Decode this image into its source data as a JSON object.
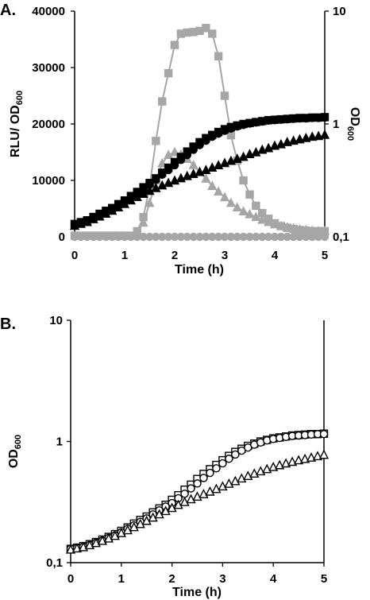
{
  "colors": {
    "black": "#000000",
    "gray": "#a6a6a6",
    "white": "#ffffff"
  },
  "chart_data": [
    {
      "panel_label": "A.",
      "type": "line",
      "xlabel": "Time (h)",
      "ylabel_left": "RLU/ OD",
      "ylabel_left_sub": "600",
      "ylabel_right": "OD",
      "ylabel_right_sub": "600",
      "xlim": [
        0,
        5
      ],
      "ylim_left": [
        0,
        40000
      ],
      "ylim_right": [
        0.1,
        10
      ],
      "y_right_scale": "log",
      "x_ticks": [
        "0",
        "1",
        "2",
        "3",
        "4",
        "5"
      ],
      "y_left_ticks": [
        "0",
        "10000",
        "20000",
        "30000",
        "40000"
      ],
      "y_right_ticks": [
        "0,1",
        "1",
        "10"
      ],
      "series": [
        {
          "axis": "left",
          "marker": "square",
          "color": "gray",
          "line": true,
          "x": [
            0,
            0.125,
            0.25,
            0.375,
            0.5,
            0.625,
            0.75,
            0.875,
            1,
            1.125,
            1.25,
            1.375,
            1.5,
            1.625,
            1.75,
            1.875,
            2,
            2.125,
            2.25,
            2.375,
            2.5,
            2.625,
            2.75,
            2.875,
            3,
            3.125,
            3.25,
            3.375,
            3.5,
            3.625,
            3.75,
            3.875,
            4,
            4.125,
            4.25,
            4.375,
            4.5,
            4.625,
            4.75,
            4.875,
            5
          ],
          "y": [
            200,
            200,
            200,
            200,
            200,
            200,
            200,
            200,
            200,
            200,
            1000,
            3500,
            9000,
            17000,
            24000,
            29000,
            34000,
            36000,
            36200,
            36300,
            36500,
            37000,
            36000,
            32000,
            25000,
            18000,
            13500,
            10000,
            7500,
            5500,
            4200,
            3200,
            2400,
            1900,
            1600,
            1400,
            1200,
            1100,
            1000,
            1000,
            1000
          ]
        },
        {
          "axis": "left",
          "marker": "triangle",
          "color": "gray",
          "line": true,
          "x": [
            1.25,
            1.375,
            1.5,
            1.625,
            1.75,
            1.875,
            2,
            2.125,
            2.25,
            2.375,
            2.5,
            2.625,
            2.75,
            2.875,
            3,
            3.125,
            3.25,
            3.375,
            3.5,
            3.625,
            3.75,
            3.875,
            4,
            4.125,
            4.25,
            4.375,
            4.5,
            4.625,
            4.75,
            4.875,
            5
          ],
          "y": [
            700,
            2500,
            6000,
            10000,
            13000,
            14500,
            15000,
            14600,
            13800,
            12700,
            11500,
            10300,
            9000,
            8000,
            7000,
            6000,
            5200,
            4500,
            4000,
            3500,
            3000,
            2600,
            2200,
            1900,
            1700,
            1500,
            1300,
            1200,
            1100,
            1000,
            1000
          ]
        },
        {
          "axis": "left",
          "marker": "circle",
          "color": "gray",
          "line": true,
          "x": [
            0,
            0.125,
            0.25,
            0.375,
            0.5,
            0.625,
            0.75,
            0.875,
            1,
            1.125,
            1.25,
            1.375,
            1.5,
            1.625,
            1.75,
            1.875,
            2,
            2.125,
            2.25,
            2.375,
            2.5,
            2.625,
            2.75,
            2.875,
            3,
            3.125,
            3.25,
            3.375,
            3.5,
            3.625,
            3.75,
            3.875,
            4,
            4.125,
            4.25,
            4.375,
            4.5,
            4.625,
            4.75,
            4.875,
            5
          ],
          "y": [
            0,
            0,
            0,
            0,
            0,
            0,
            0,
            0,
            0,
            0,
            0,
            0,
            0,
            0,
            0,
            0,
            0,
            0,
            0,
            0,
            0,
            0,
            0,
            0,
            0,
            0,
            0,
            0,
            0,
            0,
            0,
            0,
            0,
            0,
            0,
            0,
            0,
            0,
            0,
            0,
            0
          ]
        },
        {
          "axis": "right",
          "marker": "square",
          "color": "black",
          "line": false,
          "x": [
            0,
            0.125,
            0.25,
            0.375,
            0.5,
            0.625,
            0.75,
            0.875,
            1,
            1.125,
            1.25,
            1.375,
            1.5,
            1.625,
            1.75,
            1.875,
            2,
            2.125,
            2.25,
            2.375,
            2.5,
            2.625,
            2.75,
            2.875,
            3,
            3.125,
            3.25,
            3.375,
            3.5,
            3.625,
            3.75,
            3.875,
            4,
            4.125,
            4.25,
            4.375,
            4.5,
            4.625,
            4.75,
            4.875,
            5
          ],
          "y": [
            0.13,
            0.135,
            0.14,
            0.15,
            0.16,
            0.17,
            0.18,
            0.195,
            0.21,
            0.23,
            0.25,
            0.275,
            0.3,
            0.33,
            0.37,
            0.41,
            0.46,
            0.51,
            0.57,
            0.63,
            0.69,
            0.75,
            0.8,
            0.85,
            0.9,
            0.94,
            0.97,
            1,
            1.02,
            1.04,
            1.06,
            1.08,
            1.09,
            1.1,
            1.11,
            1.12,
            1.13,
            1.13,
            1.14,
            1.14,
            1.15
          ]
        },
        {
          "axis": "right",
          "marker": "circle",
          "color": "black",
          "line": false,
          "x": [
            0,
            0.125,
            0.25,
            0.375,
            0.5,
            0.625,
            0.75,
            0.875,
            1,
            1.125,
            1.25,
            1.375,
            1.5,
            1.625,
            1.75,
            1.875,
            2,
            2.125,
            2.25,
            2.375,
            2.5,
            2.625,
            2.75,
            2.875,
            3,
            3.125,
            3.25,
            3.375,
            3.5,
            3.625,
            3.75,
            3.875,
            4,
            4.125,
            4.25,
            4.375,
            4.5,
            4.625,
            4.75,
            4.875,
            5
          ],
          "y": [
            0.13,
            0.134,
            0.14,
            0.148,
            0.157,
            0.166,
            0.177,
            0.19,
            0.205,
            0.22,
            0.24,
            0.262,
            0.29,
            0.32,
            0.355,
            0.39,
            0.43,
            0.48,
            0.53,
            0.59,
            0.65,
            0.71,
            0.77,
            0.82,
            0.87,
            0.91,
            0.95,
            0.98,
            1.01,
            1.03,
            1.05,
            1.07,
            1.08,
            1.09,
            1.1,
            1.11,
            1.12,
            1.12,
            1.13,
            1.13,
            1.14
          ]
        },
        {
          "axis": "right",
          "marker": "triangle",
          "color": "black",
          "line": false,
          "x": [
            0,
            0.125,
            0.25,
            0.375,
            0.5,
            0.625,
            0.75,
            0.875,
            1,
            1.125,
            1.25,
            1.375,
            1.5,
            1.625,
            1.75,
            1.875,
            2,
            2.125,
            2.25,
            2.375,
            2.5,
            2.625,
            2.75,
            2.875,
            3,
            3.125,
            3.25,
            3.375,
            3.5,
            3.625,
            3.75,
            3.875,
            4,
            4.125,
            4.25,
            4.375,
            4.5,
            4.625,
            4.75,
            4.875,
            5
          ],
          "y": [
            0.125,
            0.13,
            0.135,
            0.143,
            0.151,
            0.16,
            0.17,
            0.182,
            0.195,
            0.21,
            0.225,
            0.24,
            0.255,
            0.27,
            0.285,
            0.3,
            0.315,
            0.33,
            0.345,
            0.36,
            0.375,
            0.39,
            0.41,
            0.43,
            0.45,
            0.47,
            0.49,
            0.51,
            0.54,
            0.56,
            0.59,
            0.61,
            0.64,
            0.66,
            0.69,
            0.71,
            0.73,
            0.75,
            0.77,
            0.78,
            0.8
          ]
        }
      ]
    },
    {
      "panel_label": "B.",
      "type": "scatter",
      "xlabel": "Time (h)",
      "ylabel": "OD",
      "ylabel_sub": "600",
      "xlim": [
        0,
        5
      ],
      "ylim": [
        0.1,
        10
      ],
      "y_scale": "log",
      "x_ticks": [
        "0",
        "1",
        "2",
        "3",
        "4",
        "5"
      ],
      "y_ticks": [
        "0,1",
        "1",
        "10"
      ],
      "series": [
        {
          "marker": "square",
          "color": "black",
          "filled": false,
          "x": [
            0,
            0.125,
            0.25,
            0.375,
            0.5,
            0.625,
            0.75,
            0.875,
            1,
            1.125,
            1.25,
            1.375,
            1.5,
            1.625,
            1.75,
            1.875,
            2,
            2.125,
            2.25,
            2.375,
            2.5,
            2.625,
            2.75,
            2.875,
            3,
            3.125,
            3.25,
            3.375,
            3.5,
            3.625,
            3.75,
            3.875,
            4,
            4.125,
            4.25,
            4.375,
            4.5,
            4.625,
            4.75,
            4.875,
            5
          ],
          "y": [
            0.13,
            0.133,
            0.137,
            0.142,
            0.148,
            0.155,
            0.163,
            0.172,
            0.183,
            0.195,
            0.21,
            0.225,
            0.24,
            0.26,
            0.28,
            0.3,
            0.33,
            0.36,
            0.4,
            0.44,
            0.49,
            0.54,
            0.59,
            0.64,
            0.7,
            0.76,
            0.82,
            0.87,
            0.92,
            0.96,
            1,
            1.03,
            1.06,
            1.08,
            1.1,
            1.12,
            1.13,
            1.14,
            1.15,
            1.15,
            1.16
          ]
        },
        {
          "marker": "circle",
          "color": "black",
          "filled": false,
          "x": [
            0,
            0.125,
            0.25,
            0.375,
            0.5,
            0.625,
            0.75,
            0.875,
            1,
            1.125,
            1.25,
            1.375,
            1.5,
            1.625,
            1.75,
            1.875,
            2,
            2.125,
            2.25,
            2.375,
            2.5,
            2.625,
            2.75,
            2.875,
            3,
            3.125,
            3.25,
            3.375,
            3.5,
            3.625,
            3.75,
            3.875,
            4,
            4.125,
            4.25,
            4.375,
            4.5,
            4.625,
            4.75,
            4.875,
            5
          ],
          "y": [
            0.13,
            0.132,
            0.135,
            0.14,
            0.146,
            0.152,
            0.16,
            0.168,
            0.178,
            0.19,
            0.203,
            0.217,
            0.232,
            0.25,
            0.27,
            0.29,
            0.31,
            0.34,
            0.37,
            0.41,
            0.45,
            0.5,
            0.55,
            0.6,
            0.66,
            0.72,
            0.78,
            0.84,
            0.89,
            0.94,
            0.98,
            1.02,
            1.05,
            1.07,
            1.09,
            1.11,
            1.12,
            1.13,
            1.14,
            1.15,
            1.15
          ]
        },
        {
          "marker": "triangle",
          "color": "black",
          "filled": false,
          "x": [
            0,
            0.125,
            0.25,
            0.375,
            0.5,
            0.625,
            0.75,
            0.875,
            1,
            1.125,
            1.25,
            1.375,
            1.5,
            1.625,
            1.75,
            1.875,
            2,
            2.125,
            2.25,
            2.375,
            2.5,
            2.625,
            2.75,
            2.875,
            3,
            3.125,
            3.25,
            3.375,
            3.5,
            3.625,
            3.75,
            3.875,
            4,
            4.125,
            4.25,
            4.375,
            4.5,
            4.625,
            4.75,
            4.875,
            5
          ],
          "y": [
            0.128,
            0.131,
            0.134,
            0.139,
            0.145,
            0.151,
            0.158,
            0.166,
            0.175,
            0.185,
            0.196,
            0.208,
            0.221,
            0.235,
            0.25,
            0.266,
            0.282,
            0.299,
            0.316,
            0.333,
            0.35,
            0.367,
            0.385,
            0.405,
            0.425,
            0.447,
            0.47,
            0.494,
            0.518,
            0.542,
            0.566,
            0.59,
            0.614,
            0.636,
            0.658,
            0.678,
            0.698,
            0.716,
            0.735,
            0.755,
            0.775
          ]
        }
      ]
    }
  ]
}
